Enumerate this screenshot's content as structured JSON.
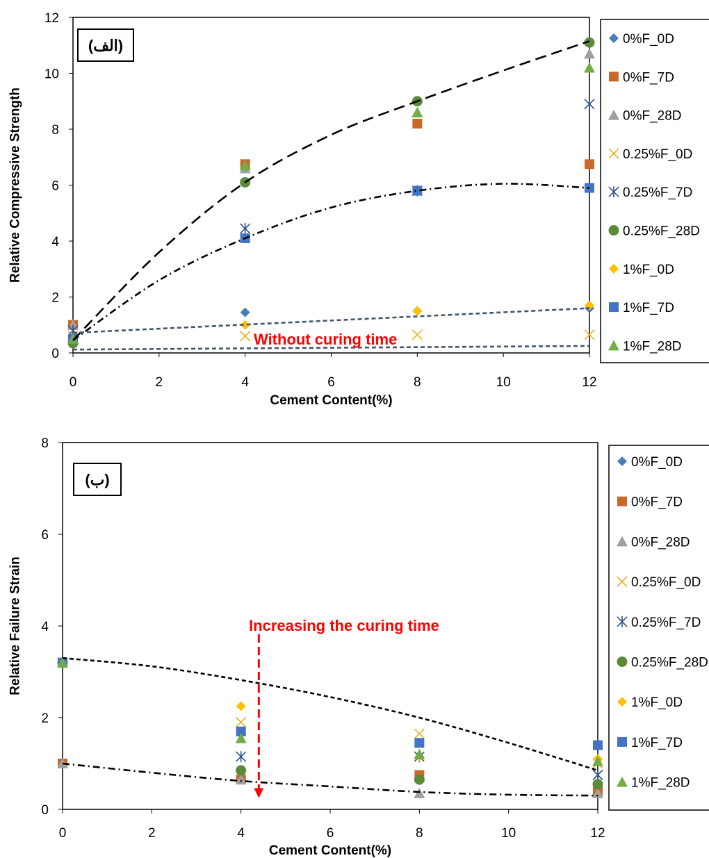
{
  "series_styles": [
    {
      "name": "0%F_0D",
      "marker": "diamond",
      "color": "#4a7ebb"
    },
    {
      "name": "0%F_7D",
      "marker": "square",
      "color": "#c8692a"
    },
    {
      "name": "0%F_28D",
      "marker": "triangle",
      "color": "#a0a0a0"
    },
    {
      "name": "0.25%F_0D",
      "marker": "x",
      "color": "#e6b01c"
    },
    {
      "name": "0.25%F_7D",
      "marker": "star",
      "color": "#2f4f8f"
    },
    {
      "name": "0.25%F_28D",
      "marker": "circle",
      "color": "#5a8a3a"
    },
    {
      "name": "1%F_0D",
      "marker": "diamond",
      "color": "#ffc000"
    },
    {
      "name": "1%F_7D",
      "marker": "square",
      "color": "#4472c4"
    },
    {
      "name": "1%F_28D",
      "marker": "triangle",
      "color": "#70ad47"
    }
  ],
  "chart_data": [
    {
      "type": "scatter",
      "panel_label": "(الف)",
      "xlabel": "Cement Content(%)",
      "ylabel": "Relative Compressive Strength",
      "xlim": [
        0,
        12
      ],
      "ylim": [
        0,
        12
      ],
      "xticks": [
        0,
        2,
        4,
        6,
        8,
        10,
        12
      ],
      "yticks": [
        0,
        2,
        4,
        6,
        8,
        10,
        12
      ],
      "legend_position": "right",
      "annotation": "Without curing time",
      "x": [
        0,
        4,
        8,
        12
      ],
      "series": [
        {
          "name": "0%F_0D",
          "values": [
            1.0,
            1.45,
            1.5,
            1.6
          ]
        },
        {
          "name": "0%F_7D",
          "values": [
            1.0,
            6.75,
            8.2,
            6.75
          ]
        },
        {
          "name": "0%F_28D",
          "values": [
            1.0,
            6.6,
            8.6,
            10.7
          ]
        },
        {
          "name": "0.25%F_0D",
          "values": [
            0.6,
            0.6,
            0.65,
            0.65
          ]
        },
        {
          "name": "0.25%F_7D",
          "values": [
            0.8,
            4.45,
            5.8,
            8.9
          ]
        },
        {
          "name": "0.25%F_28D",
          "values": [
            0.35,
            6.1,
            9.0,
            11.1
          ]
        },
        {
          "name": "1%F_0D",
          "values": [
            0.5,
            1.0,
            1.5,
            1.7
          ]
        },
        {
          "name": "1%F_7D",
          "values": [
            0.5,
            4.1,
            5.8,
            5.9
          ]
        },
        {
          "name": "1%F_28D",
          "values": [
            0.5,
            6.7,
            8.6,
            10.2
          ]
        }
      ],
      "trendlines": [
        {
          "style": "long-dash",
          "color": "#000000",
          "points": [
            [
              0,
              0.45
            ],
            [
              2,
              3.6
            ],
            [
              4,
              6.1
            ],
            [
              6,
              7.8
            ],
            [
              8,
              9.0
            ],
            [
              10,
              10.1
            ],
            [
              12,
              11.15
            ]
          ]
        },
        {
          "style": "dash-dot",
          "color": "#000000",
          "points": [
            [
              0,
              0.45
            ],
            [
              2,
              2.6
            ],
            [
              4,
              4.1
            ],
            [
              6,
              5.2
            ],
            [
              8,
              5.8
            ],
            [
              10,
              6.05
            ],
            [
              12,
              5.9
            ]
          ]
        },
        {
          "style": "short-dash",
          "color": "#44546a",
          "points": [
            [
              0,
              0.72
            ],
            [
              12,
              1.6
            ]
          ]
        },
        {
          "style": "short-dash",
          "color": "#44546a",
          "points": [
            [
              0,
              0.12
            ],
            [
              12,
              0.25
            ]
          ]
        }
      ]
    },
    {
      "type": "scatter",
      "panel_label": "(ب)",
      "xlabel": "Cement Content(%)",
      "ylabel": "Relative Failure Strain",
      "xlim": [
        0,
        12
      ],
      "ylim": [
        0,
        8
      ],
      "xticks": [
        0,
        2,
        4,
        6,
        8,
        10,
        12
      ],
      "yticks": [
        0,
        2,
        4,
        6,
        8
      ],
      "legend_position": "right",
      "annotation": "Increasing the curing time",
      "x": [
        0,
        4,
        8,
        12
      ],
      "series": [
        {
          "name": "0%F_0D",
          "values": [
            1.0,
            0.65,
            0.75,
            0.4
          ]
        },
        {
          "name": "0%F_7D",
          "values": [
            1.0,
            0.65,
            0.75,
            0.4
          ]
        },
        {
          "name": "0%F_28D",
          "values": [
            1.0,
            0.65,
            0.35,
            0.35
          ]
        },
        {
          "name": "0.25%F_0D",
          "values": [
            3.2,
            1.9,
            1.65,
            1.0
          ]
        },
        {
          "name": "0.25%F_7D",
          "values": [
            3.2,
            1.15,
            1.15,
            0.75
          ]
        },
        {
          "name": "0.25%F_28D",
          "values": [
            3.2,
            0.85,
            0.65,
            0.55
          ]
        },
        {
          "name": "1%F_0D",
          "values": [
            3.2,
            2.25,
            1.15,
            1.1
          ]
        },
        {
          "name": "1%F_7D",
          "values": [
            3.2,
            1.7,
            1.45,
            1.4
          ]
        },
        {
          "name": "1%F_28D",
          "values": [
            3.2,
            1.55,
            1.2,
            1.05
          ]
        }
      ],
      "trendlines": [
        {
          "style": "short-dash",
          "color": "#000000",
          "points": [
            [
              0,
              3.3
            ],
            [
              2,
              3.12
            ],
            [
              4,
              2.82
            ],
            [
              6,
              2.45
            ],
            [
              8,
              2.0
            ],
            [
              10,
              1.45
            ],
            [
              12,
              0.85
            ]
          ]
        },
        {
          "style": "dash-dot",
          "color": "#000000",
          "points": [
            [
              0,
              1.0
            ],
            [
              2,
              0.8
            ],
            [
              4,
              0.62
            ],
            [
              6,
              0.5
            ],
            [
              8,
              0.38
            ],
            [
              10,
              0.32
            ],
            [
              12,
              0.3
            ]
          ]
        }
      ],
      "arrow": {
        "x": 4.4,
        "y_from": 4.0,
        "y_to": 0.25,
        "color": "#ff0000"
      }
    }
  ]
}
